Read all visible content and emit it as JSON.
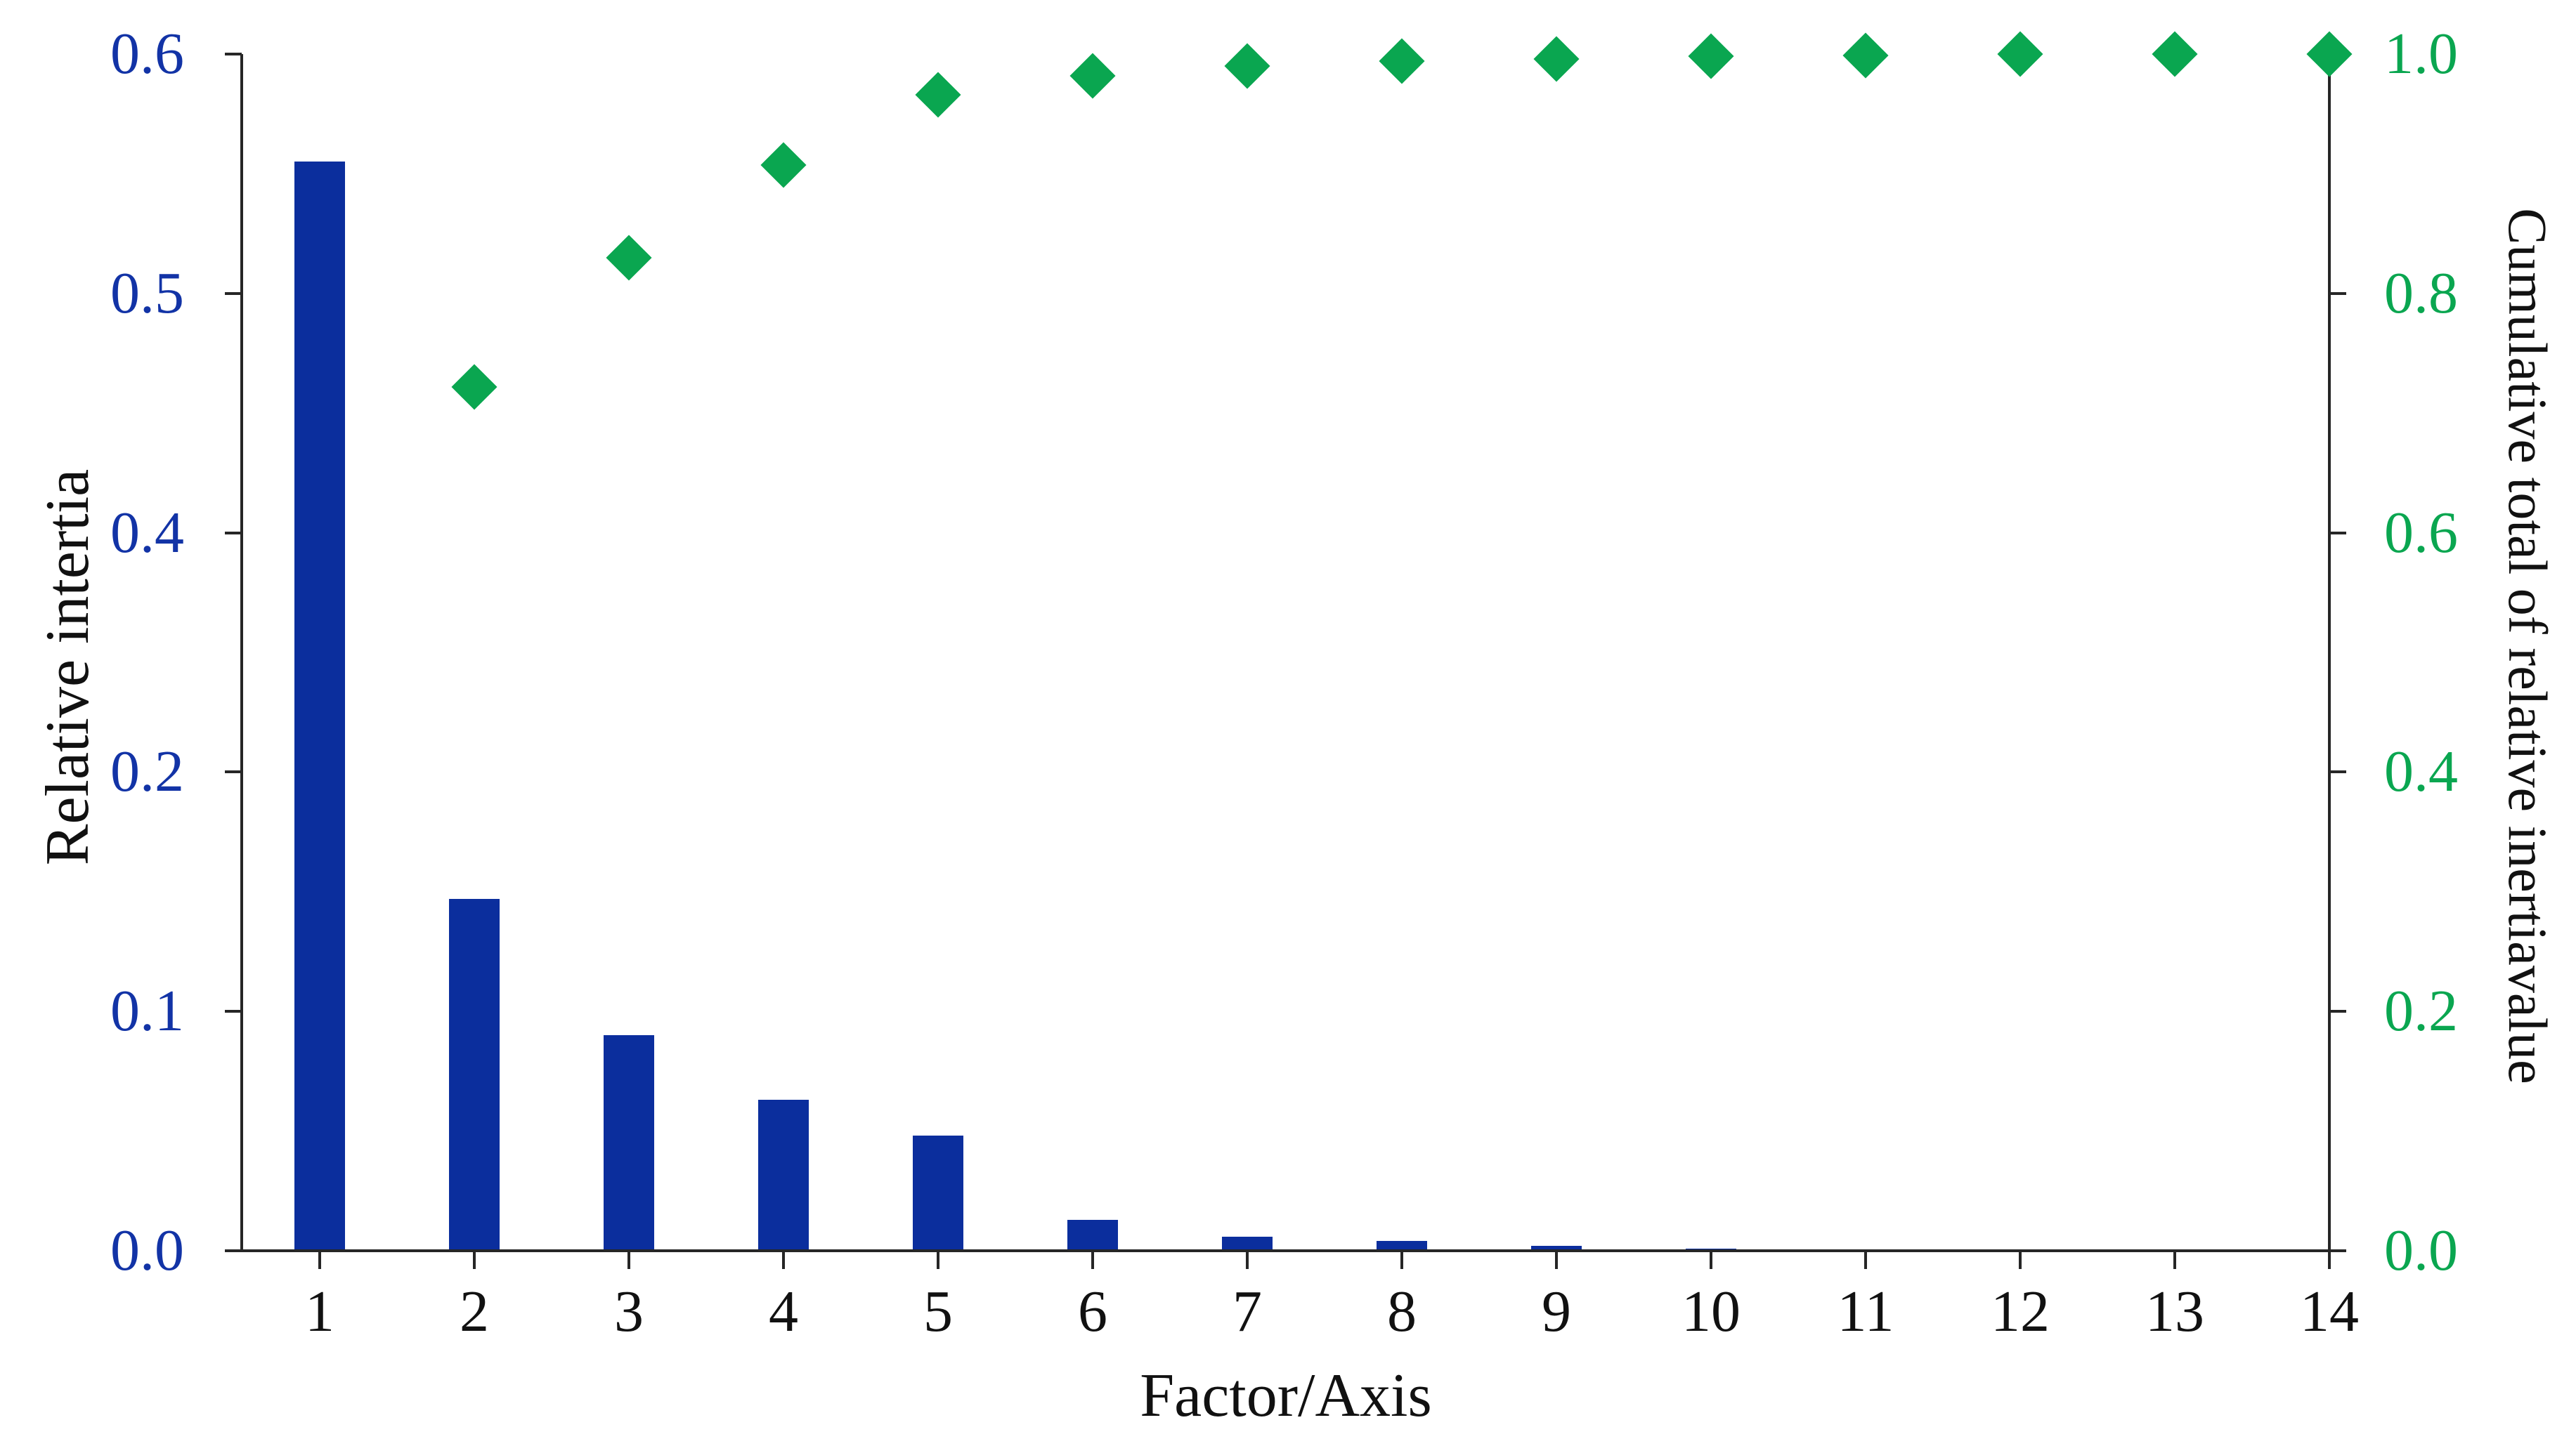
{
  "chart_data": {
    "type": "bar",
    "subtype": "bar-and-scatter-combo",
    "title": "",
    "xlabel": "Factor/Axis",
    "ylabel_left": "Relative intertia",
    "ylabel_right": "Cumulative total of relative inertiavalue",
    "categories": [
      "1",
      "2",
      "3",
      "4",
      "5",
      "6",
      "7",
      "8",
      "9",
      "10",
      "11",
      "12",
      "13",
      "14"
    ],
    "series": [
      {
        "name": "Relative inertia",
        "type": "bar",
        "axis": "left",
        "values": [
          0.555,
          0.147,
          0.09,
          0.063,
          0.048,
          0.013,
          0.006,
          0.004,
          0.002,
          0.001,
          0,
          0,
          0,
          0
        ]
      },
      {
        "name": "Cumulative total of relative inertia",
        "type": "scatter",
        "marker": "diamond",
        "axis": "right",
        "values": [
          null,
          0.722,
          0.83,
          0.907,
          0.966,
          0.982,
          0.99,
          0.994,
          0.996,
          0.998,
          0.999,
          1.0,
          1.0,
          1.0
        ]
      }
    ],
    "left_axis_ticks": [
      {
        "label": "0.6",
        "value": 0.6
      },
      {
        "label": "0.5",
        "value": 0.5
      },
      {
        "label": "0.4",
        "value": 0.4
      },
      {
        "label": "0.2",
        "value": 0.2
      },
      {
        "label": "0.1",
        "value": 0.1
      },
      {
        "label": "0.0",
        "value": 0.0
      }
    ],
    "right_axis_ticks": [
      {
        "label": "1.0",
        "value": 1.0
      },
      {
        "label": "0.8",
        "value": 0.8
      },
      {
        "label": "0.6",
        "value": 0.6
      },
      {
        "label": "0.4",
        "value": 0.4
      },
      {
        "label": "0.2",
        "value": 0.2
      },
      {
        "label": "0.0",
        "value": 0.0
      }
    ],
    "grid": false,
    "legend": "none",
    "colors": {
      "bar": "#0b2e9d",
      "marker": "#0aa650",
      "left_tick_text": "#1233a6",
      "right_tick_text": "#0aa650",
      "axis_line": "#262626",
      "text": "#111111"
    }
  }
}
